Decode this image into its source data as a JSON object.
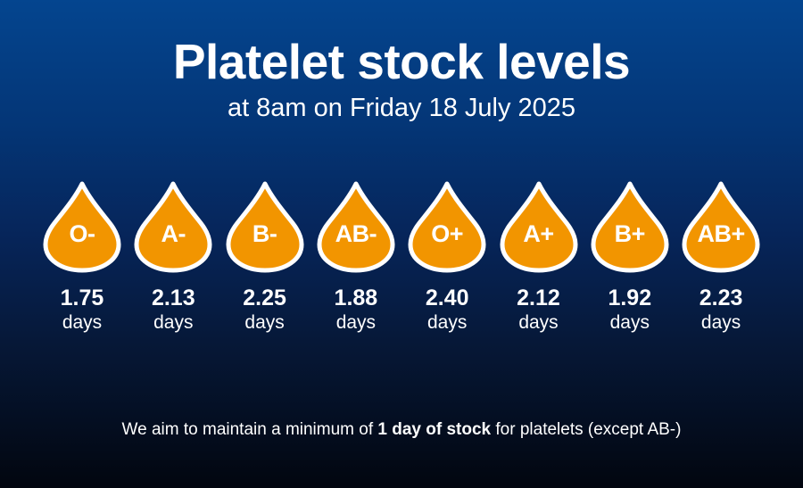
{
  "title": "Platelet stock levels",
  "subtitle": "at 8am on Friday 18 July 2025",
  "drop_fill_color": "#f29500",
  "drop_border_color": "#ffffff",
  "icon": "blood-drop-icon",
  "groups": [
    {
      "label": "O-",
      "value": "1.75",
      "unit": "days"
    },
    {
      "label": "A-",
      "value": "2.13",
      "unit": "days"
    },
    {
      "label": "B-",
      "value": "2.25",
      "unit": "days"
    },
    {
      "label": "AB-",
      "value": "1.88",
      "unit": "days"
    },
    {
      "label": "O+",
      "value": "2.40",
      "unit": "days"
    },
    {
      "label": "A+",
      "value": "2.12",
      "unit": "days"
    },
    {
      "label": "B+",
      "value": "1.92",
      "unit": "days"
    },
    {
      "label": "AB+",
      "value": "2.23",
      "unit": "days"
    }
  ],
  "footer": {
    "before": "We aim to maintain a minimum of ",
    "bold": "1 day of stock",
    "after": " for platelets (except AB-)"
  }
}
